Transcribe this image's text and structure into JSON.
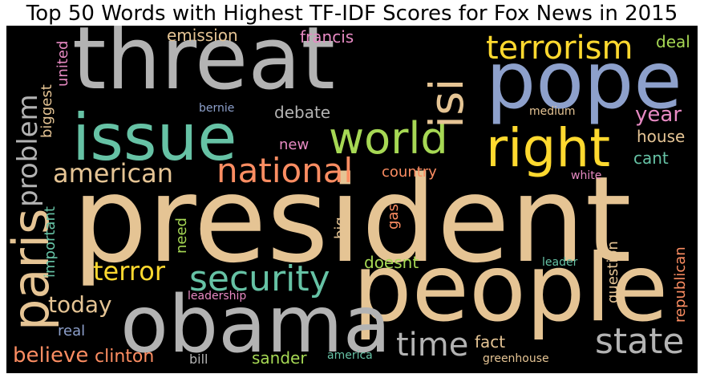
{
  "title": "Top 50 Words with Highest TF-IDF Scores for Fox News in 2015",
  "colors": {
    "gray": "#b3b3b3",
    "tan": "#e5c494",
    "blue": "#8da0cb",
    "teal": "#66c2a5",
    "green": "#a6d854",
    "yellow": "#ffd92f",
    "orange": "#fc8d62",
    "pink": "#e78ac3"
  },
  "words": {
    "president": "president",
    "people": "people",
    "threat": "threat",
    "pope": "pope",
    "obama": "obama",
    "issue": "issue",
    "world": "world",
    "right": "right",
    "paris": "paris",
    "isi": "isi",
    "terrorism": "terrorism",
    "security": "security",
    "state": "state",
    "time": "time",
    "american": "american",
    "national": "national",
    "problem": "problem",
    "terror": "terror",
    "today": "today",
    "believe": "believe",
    "year": "year",
    "clinton": "clinton",
    "emission": "emission",
    "francis": "francis",
    "debate": "debate",
    "house": "house",
    "deal": "deal",
    "cant": "cant",
    "country": "country",
    "doesnt": "doesnt",
    "sander": "sander",
    "fact": "fact",
    "republican": "republican",
    "question": "question",
    "biggest": "biggest",
    "united": "united",
    "important": "important",
    "need": "need",
    "big": "big",
    "gas": "gas",
    "new": "new",
    "real": "real",
    "bernie": "bernie",
    "medium": "medium",
    "white": "white",
    "leader": "leader",
    "leadership": "leadership",
    "bill": "bill",
    "america": "america",
    "greenhouse": "greenhouse"
  }
}
